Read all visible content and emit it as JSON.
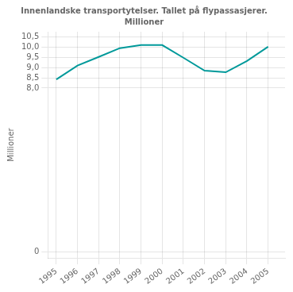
{
  "chart_data": {
    "type": "line",
    "title": "Innenlandske transportytelser. Tallet på flypassasjerer.",
    "subtitle": "Millioner",
    "y_label": "Millioner",
    "x": [
      1995,
      1996,
      1997,
      1998,
      1999,
      2000,
      2001,
      2002,
      2003,
      2004,
      2005
    ],
    "values": [
      8.42,
      9.1,
      9.52,
      9.95,
      10.1,
      10.1,
      9.48,
      8.85,
      8.77,
      9.32,
      10.02
    ],
    "color": "#00999a",
    "xlim": [
      1994.6,
      2005.8
    ],
    "xticks": [
      1995,
      1996,
      1997,
      1998,
      1999,
      2000,
      2001,
      2002,
      2003,
      2004,
      2005
    ],
    "ylim": [
      -0.3,
      10.75
    ],
    "yticks": [
      0,
      {
        "value": 8.0,
        "label": "8,0"
      },
      {
        "value": 8.5,
        "label": "8,5"
      },
      {
        "value": 9.0,
        "label": "9,0"
      },
      {
        "value": 9.5,
        "label": "9,5"
      },
      {
        "value": 10.0,
        "label": "10,0"
      },
      {
        "value": 10.5,
        "label": "10,5"
      }
    ],
    "grid": true
  }
}
